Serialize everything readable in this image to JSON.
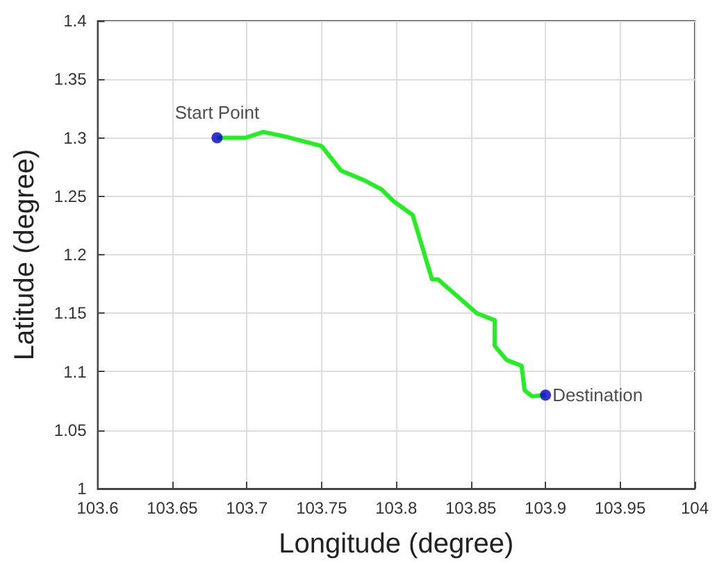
{
  "chart_data": {
    "type": "line",
    "xlabel": "Longitude (degree)",
    "ylabel": "Latitude (degree)",
    "xlim": [
      103.6,
      104
    ],
    "xticks": [
      103.6,
      103.65,
      103.7,
      103.75,
      103.8,
      103.85,
      103.9,
      103.95,
      104
    ],
    "ylim": [
      1,
      1.4
    ],
    "yticks": [
      1,
      1.05,
      1.1,
      1.15,
      1.2,
      1.25,
      1.3,
      1.35,
      1.4
    ],
    "grid": true,
    "legend": false,
    "series": [
      {
        "color": "#22ee22",
        "marker": "none",
        "x": [
          103.68,
          103.699,
          103.711,
          103.726,
          103.738,
          103.75,
          103.763,
          103.778,
          103.79,
          103.798,
          103.811,
          103.824,
          103.828,
          103.854,
          103.866,
          103.866,
          103.874,
          103.884,
          103.886,
          103.891,
          103.9
        ],
        "values": [
          1.3,
          1.3,
          1.305,
          1.301,
          1.297,
          1.293,
          1.272,
          1.264,
          1.256,
          1.246,
          1.234,
          1.179,
          1.179,
          1.15,
          1.144,
          1.122,
          1.11,
          1.105,
          1.084,
          1.079,
          1.08
        ]
      },
      {
        "type": "scatter",
        "name": "Start Point",
        "color": "#0000cc",
        "marker": "circle",
        "x": [
          103.68
        ],
        "values": [
          1.3
        ]
      },
      {
        "type": "scatter",
        "name": "Destination",
        "color": "#0000cc",
        "marker": "circle",
        "x": [
          103.9
        ],
        "values": [
          1.08
        ]
      }
    ]
  }
}
